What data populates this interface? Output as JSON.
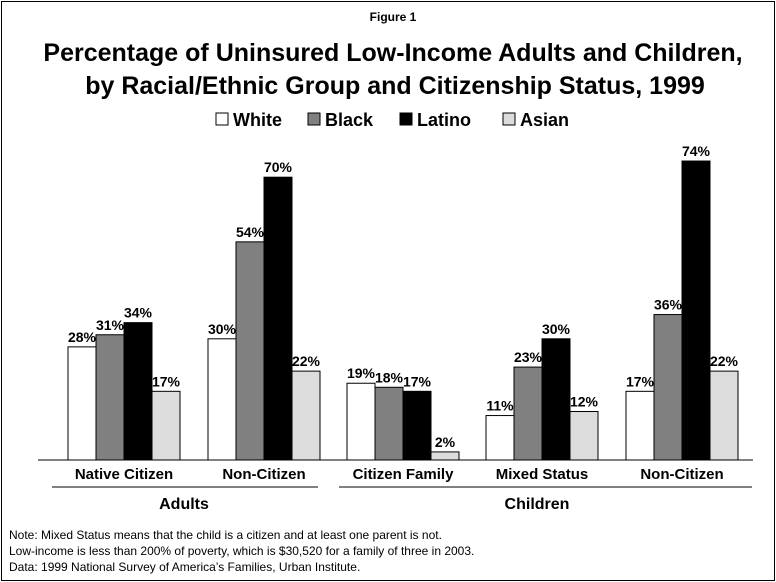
{
  "chart_data": {
    "type": "bar",
    "figure_label": "Figure 1",
    "title_lines": [
      "Percentage of Uninsured Low-Income Adults and Children,",
      "by Racial/Ethnic Group and Citizenship Status, 1999"
    ],
    "ylim": [
      0,
      80
    ],
    "grid": false,
    "legend_position": "top-center",
    "categories": [
      "Native Citizen",
      "Non-Citizen",
      "Citizen Family",
      "Mixed Status",
      "Non-Citizen"
    ],
    "groups": [
      {
        "label": "Adults",
        "category_indices": [
          0,
          1
        ]
      },
      {
        "label": "Children",
        "category_indices": [
          2,
          3,
          4
        ]
      }
    ],
    "series": [
      {
        "name": "White",
        "color": "#ffffff",
        "values": [
          28,
          30,
          19,
          11,
          17
        ]
      },
      {
        "name": "Black",
        "color": "#808080",
        "values": [
          31,
          54,
          18,
          23,
          36
        ]
      },
      {
        "name": "Latino",
        "color": "#000000",
        "values": [
          34,
          70,
          17,
          30,
          74
        ]
      },
      {
        "name": "Asian",
        "color": "#dcdcdc",
        "values": [
          17,
          22,
          2,
          12,
          22
        ]
      }
    ],
    "value_suffix": "%",
    "notes": [
      "Note: Mixed Status means that the child is a citizen and at least one parent is not.",
      "Low-income is less than 200% of poverty, which is $30,520 for a family of three in 2003.",
      "Data: 1999 National Survey of America’s Families, Urban Institute."
    ]
  }
}
